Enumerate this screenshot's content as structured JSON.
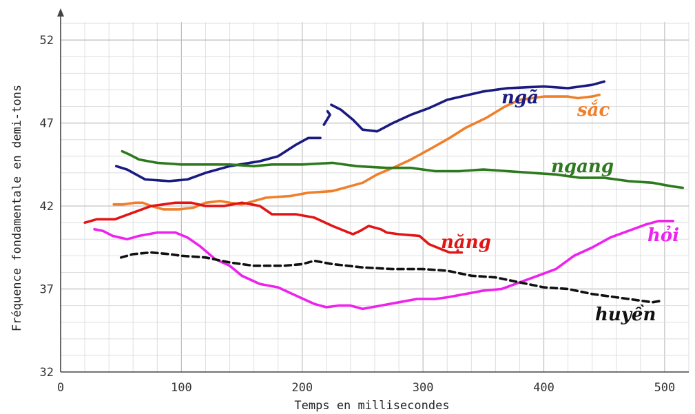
{
  "chart_data": {
    "type": "line",
    "title": "",
    "xlabel": "Temps en millisecondes",
    "ylabel": "Fréquence fondamentale en demi-tons",
    "xlim": [
      0,
      520
    ],
    "ylim": [
      32,
      53.5
    ],
    "x_ticks": [
      0,
      100,
      200,
      300,
      400,
      500
    ],
    "y_ticks": [
      32,
      37,
      42,
      47,
      52
    ],
    "grid": true,
    "series": [
      {
        "name": "ngã",
        "color": "#1a1a80",
        "dashed": false,
        "segments": [
          [
            [
              46,
              44.4
            ],
            [
              55,
              44.2
            ],
            [
              65,
              43.8
            ],
            [
              70,
              43.6
            ],
            [
              90,
              43.5
            ],
            [
              105,
              43.6
            ],
            [
              120,
              44
            ],
            [
              140,
              44.4
            ],
            [
              165,
              44.7
            ],
            [
              180,
              45
            ],
            [
              195,
              45.7
            ],
            [
              205,
              46.1
            ],
            [
              215,
              46.1
            ]
          ],
          [
            [
              218,
              46.9
            ],
            [
              223,
              47.5
            ],
            [
              221,
              47.7
            ]
          ],
          [
            [
              224,
              48.1
            ],
            [
              232,
              47.8
            ],
            [
              242,
              47.2
            ],
            [
              250,
              46.6
            ],
            [
              262,
              46.5
            ],
            [
              275,
              47
            ],
            [
              290,
              47.5
            ],
            [
              305,
              47.9
            ],
            [
              320,
              48.4
            ],
            [
              350,
              48.9
            ],
            [
              370,
              49.1
            ],
            [
              400,
              49.2
            ],
            [
              420,
              49.1
            ],
            [
              440,
              49.3
            ],
            [
              450,
              49.5
            ]
          ]
        ],
        "label": "ngã"
      },
      {
        "name": "sắc",
        "color": "#f07f2a",
        "dashed": false,
        "segments": [
          [
            [
              44,
              42.1
            ],
            [
              52,
              42.1
            ],
            [
              62,
              42.2
            ],
            [
              68,
              42.2
            ],
            [
              75,
              42
            ],
            [
              85,
              41.8
            ],
            [
              98,
              41.8
            ],
            [
              110,
              41.9
            ],
            [
              120,
              42.2
            ],
            [
              132,
              42.3
            ],
            [
              140,
              42.2
            ],
            [
              150,
              42.1
            ],
            [
              160,
              42.3
            ],
            [
              170,
              42.5
            ],
            [
              190,
              42.6
            ],
            [
              205,
              42.8
            ],
            [
              225,
              42.9
            ],
            [
              240,
              43.2
            ],
            [
              250,
              43.4
            ],
            [
              262,
              43.9
            ],
            [
              275,
              44.3
            ],
            [
              290,
              44.8
            ],
            [
              305,
              45.4
            ],
            [
              322,
              46.1
            ],
            [
              335,
              46.7
            ],
            [
              352,
              47.3
            ],
            [
              368,
              48
            ],
            [
              380,
              48.4
            ],
            [
              400,
              48.6
            ],
            [
              420,
              48.6
            ],
            [
              428,
              48.5
            ],
            [
              440,
              48.6
            ],
            [
              446,
              48.7
            ]
          ]
        ],
        "label": "sắc"
      },
      {
        "name": "ngang",
        "color": "#2d7a1e",
        "dashed": false,
        "segments": [
          [
            [
              51,
              45.3
            ],
            [
              57,
              45.1
            ],
            [
              65,
              44.8
            ],
            [
              80,
              44.6
            ],
            [
              100,
              44.5
            ],
            [
              120,
              44.5
            ],
            [
              140,
              44.5
            ],
            [
              160,
              44.4
            ],
            [
              175,
              44.5
            ],
            [
              200,
              44.5
            ],
            [
              225,
              44.6
            ],
            [
              245,
              44.4
            ],
            [
              270,
              44.3
            ],
            [
              290,
              44.3
            ],
            [
              310,
              44.1
            ],
            [
              330,
              44.1
            ],
            [
              350,
              44.2
            ],
            [
              370,
              44.1
            ],
            [
              390,
              44
            ],
            [
              410,
              43.9
            ],
            [
              430,
              43.7
            ],
            [
              450,
              43.7
            ],
            [
              470,
              43.5
            ],
            [
              490,
              43.4
            ],
            [
              505,
              43.2
            ],
            [
              515,
              43.1
            ]
          ]
        ],
        "label": "ngang"
      },
      {
        "name": "nặng",
        "color": "#e11515",
        "dashed": false,
        "segments": [
          [
            [
              20,
              41
            ],
            [
              30,
              41.2
            ],
            [
              45,
              41.2
            ],
            [
              60,
              41.6
            ],
            [
              75,
              42
            ],
            [
              95,
              42.2
            ],
            [
              108,
              42.2
            ],
            [
              120,
              42
            ],
            [
              135,
              42
            ],
            [
              150,
              42.2
            ],
            [
              158,
              42.1
            ],
            [
              165,
              42
            ],
            [
              175,
              41.5
            ],
            [
              195,
              41.5
            ],
            [
              210,
              41.3
            ],
            [
              225,
              40.8
            ],
            [
              242,
              40.3
            ],
            [
              248,
              40.5
            ],
            [
              255,
              40.8
            ],
            [
              265,
              40.6
            ],
            [
              270,
              40.4
            ],
            [
              280,
              40.3
            ],
            [
              297,
              40.2
            ],
            [
              305,
              39.7
            ],
            [
              315,
              39.4
            ],
            [
              322,
              39.2
            ],
            [
              332,
              39.2
            ]
          ]
        ],
        "label": "nặng"
      },
      {
        "name": "hỏi",
        "color": "#ee22ee",
        "dashed": false,
        "segments": [
          [
            [
              28,
              40.6
            ],
            [
              35,
              40.5
            ],
            [
              43,
              40.2
            ],
            [
              55,
              40
            ],
            [
              65,
              40.2
            ],
            [
              80,
              40.4
            ],
            [
              95,
              40.4
            ],
            [
              105,
              40.1
            ],
            [
              115,
              39.6
            ],
            [
              128,
              38.8
            ],
            [
              140,
              38.4
            ],
            [
              150,
              37.8
            ],
            [
              165,
              37.3
            ],
            [
              180,
              37.1
            ],
            [
              195,
              36.6
            ],
            [
              210,
              36.1
            ],
            [
              220,
              35.9
            ],
            [
              230,
              36
            ],
            [
              240,
              36
            ],
            [
              250,
              35.8
            ],
            [
              265,
              36
            ],
            [
              280,
              36.2
            ],
            [
              295,
              36.4
            ],
            [
              310,
              36.4
            ],
            [
              320,
              36.5
            ],
            [
              335,
              36.7
            ],
            [
              350,
              36.9
            ],
            [
              365,
              37
            ],
            [
              380,
              37.4
            ],
            [
              395,
              37.8
            ],
            [
              410,
              38.2
            ],
            [
              425,
              39
            ],
            [
              440,
              39.5
            ],
            [
              455,
              40.1
            ],
            [
              470,
              40.5
            ],
            [
              485,
              40.9
            ],
            [
              495,
              41.1
            ],
            [
              507,
              41.1
            ]
          ]
        ],
        "label": "hỏi"
      },
      {
        "name": "huyền",
        "color": "#111111",
        "dashed": true,
        "segments": [
          [
            [
              50,
              38.9
            ],
            [
              60,
              39.1
            ],
            [
              75,
              39.2
            ],
            [
              90,
              39.1
            ],
            [
              100,
              39
            ],
            [
              120,
              38.9
            ],
            [
              140,
              38.6
            ],
            [
              160,
              38.4
            ],
            [
              185,
              38.4
            ],
            [
              200,
              38.5
            ],
            [
              210,
              38.7
            ],
            [
              225,
              38.5
            ],
            [
              250,
              38.3
            ],
            [
              275,
              38.2
            ],
            [
              300,
              38.2
            ],
            [
              320,
              38.1
            ],
            [
              340,
              37.8
            ],
            [
              360,
              37.7
            ],
            [
              380,
              37.4
            ],
            [
              400,
              37.1
            ],
            [
              420,
              37
            ],
            [
              440,
              36.7
            ],
            [
              460,
              36.5
            ],
            [
              480,
              36.3
            ],
            [
              490,
              36.2
            ],
            [
              498,
              36.3
            ]
          ]
        ],
        "label": "huyền"
      }
    ]
  }
}
